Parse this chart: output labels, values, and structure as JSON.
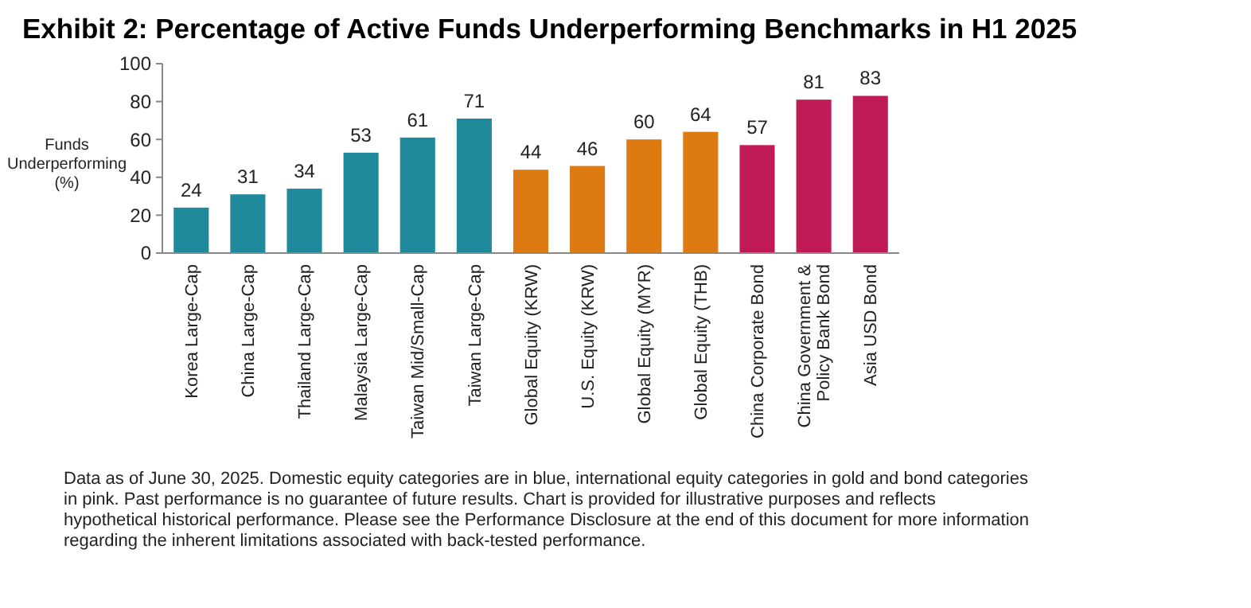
{
  "chart_data": {
    "type": "bar",
    "title": "Exhibit 2: Percentage of Active Funds Underperforming Benchmarks in H1 2025",
    "ylabel": "Funds Underperforming (%)",
    "categories": [
      "Korea Large-Cap",
      "China Large-Cap",
      "Thailand Large-Cap",
      "Malaysia Large-Cap",
      "Taiwan Mid/Small-Cap",
      "Taiwan Large-Cap",
      "Global Equity (KRW)",
      "U.S. Equity (KRW)",
      "Global Equity (MYR)",
      "Global Equity (THB)",
      "China Corporate Bond",
      "China Government & Policy Bank Bond",
      "Asia USD Bond"
    ],
    "values": [
      24,
      31,
      34,
      53,
      61,
      71,
      44,
      46,
      60,
      64,
      57,
      81,
      83
    ],
    "colors": [
      "#1f8a9c",
      "#1f8a9c",
      "#1f8a9c",
      "#1f8a9c",
      "#1f8a9c",
      "#1f8a9c",
      "#dd7a12",
      "#dd7a12",
      "#dd7a12",
      "#dd7a12",
      "#c01a57",
      "#c01a57",
      "#c01a57"
    ],
    "ylim": [
      0,
      100
    ],
    "yticks": [
      0,
      20,
      40,
      60,
      80,
      100
    ],
    "data_labels": true,
    "grid": false,
    "annotations": [
      "Data as of June 30, 2025.  Domestic equity categories are in blue, international equity categories in gold and bond categories in pink.  Past performance is no guarantee of future results.  Chart is provided for illustrative purposes and reflects hypothetical historical performance.  Please see the Performance Disclosure at the end of this document for more information regarding the inherent limitations associated with back-tested performance."
    ]
  }
}
